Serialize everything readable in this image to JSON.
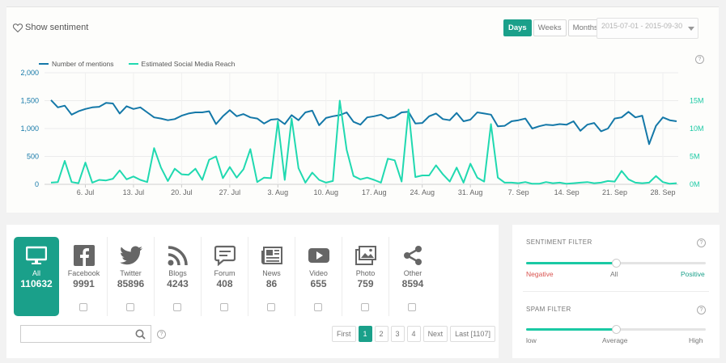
{
  "header": {
    "show_sentiment": "Show sentiment",
    "granularity": [
      "Days",
      "Weeks",
      "Months"
    ],
    "active_granularity": "Days",
    "date_range": "2015-07-01 - 2015-09-30",
    "help": "?"
  },
  "chart_data": {
    "type": "line",
    "title": "",
    "x_start": "2015-07-01",
    "x_end": "2015-09-30",
    "x_tick_labels": [
      "6. Jul",
      "13. Jul",
      "20. Jul",
      "27. Jul",
      "3. Aug",
      "10. Aug",
      "17. Aug",
      "24. Aug",
      "31. Aug",
      "7. Sep",
      "14. Sep",
      "21. Sep",
      "28. Sep"
    ],
    "y_left": {
      "label": "Number of mentions",
      "ticks": [
        "0",
        "500",
        "1,000",
        "1,500",
        "2,000"
      ],
      "range": [
        0,
        2000
      ]
    },
    "y_right": {
      "label": "Estimated Social Media Reach",
      "ticks": [
        "0M",
        "5M",
        "10M",
        "15M"
      ],
      "range": [
        0,
        20
      ]
    },
    "series": [
      {
        "name": "Number of mentions",
        "axis": "left",
        "color": "#1478a8",
        "values": [
          1510,
          1380,
          1410,
          1250,
          1310,
          1350,
          1380,
          1390,
          1460,
          1450,
          1270,
          1400,
          1350,
          1380,
          1290,
          1200,
          1180,
          1150,
          1170,
          1230,
          1270,
          1290,
          1290,
          1310,
          1080,
          1220,
          1330,
          1220,
          1260,
          1200,
          1180,
          1090,
          1160,
          1170,
          1080,
          1240,
          1150,
          1290,
          1320,
          1060,
          1190,
          1220,
          1240,
          1290,
          1120,
          1070,
          1200,
          1220,
          1250,
          1180,
          1210,
          1290,
          1300,
          1090,
          1100,
          1220,
          1270,
          1170,
          1150,
          1280,
          1130,
          1160,
          1290,
          1270,
          1250,
          1040,
          1050,
          1130,
          1150,
          1180,
          1000,
          1040,
          1070,
          1060,
          1080,
          1070,
          1130,
          960,
          1070,
          1100,
          950,
          1000,
          1180,
          1200,
          1300,
          1200,
          1230,
          720,
          1050,
          1200,
          1150,
          1130
        ]
      },
      {
        "name": "Estimated Social Media Reach",
        "axis": "right",
        "color": "#20d9b0",
        "values": [
          0.3,
          0.4,
          4.2,
          0.4,
          0.2,
          3.9,
          0.3,
          0.8,
          0.7,
          1.0,
          2.5,
          0.9,
          1.4,
          0.8,
          0.4,
          6.5,
          3.0,
          0.6,
          2.8,
          1.8,
          1.7,
          2.8,
          0.8,
          4.4,
          5.0,
          1.1,
          3.1,
          1.2,
          2.7,
          6.3,
          0.4,
          1.2,
          1.1,
          11.3,
          0.8,
          11.8,
          2.9,
          0.3,
          2.1,
          0.8,
          0.3,
          0.6,
          15.0,
          6.2,
          1.5,
          0.9,
          1.2,
          0.8,
          0.3,
          4.6,
          4.3,
          0.5,
          13.4,
          1.3,
          1.6,
          1.6,
          3.4,
          1.8,
          0.5,
          3.0,
          0.3,
          3.7,
          1.2,
          0.5,
          10.8,
          1.2,
          0.3,
          0.3,
          0.2,
          0.4,
          0.1,
          0.1,
          0.4,
          0.2,
          0.3,
          0.1,
          0.2,
          0.3,
          0.4,
          0.2,
          0.3,
          0.6,
          0.5,
          2.4,
          0.9,
          0.3,
          0.2,
          0.3,
          1.5,
          0.4,
          0.1,
          0.2
        ]
      }
    ]
  },
  "channels": [
    {
      "key": "all",
      "label": "All",
      "count": "110632",
      "icon": "monitor-icon",
      "active": true
    },
    {
      "key": "facebook",
      "label": "Facebook",
      "count": "9991",
      "icon": "facebook-icon"
    },
    {
      "key": "twitter",
      "label": "Twitter",
      "count": "85896",
      "icon": "twitter-icon"
    },
    {
      "key": "blogs",
      "label": "Blogs",
      "count": "4243",
      "icon": "rss-icon"
    },
    {
      "key": "forum",
      "label": "Forum",
      "count": "408",
      "icon": "chat-bubble-icon"
    },
    {
      "key": "news",
      "label": "News",
      "count": "86",
      "icon": "newspaper-icon"
    },
    {
      "key": "video",
      "label": "Video",
      "count": "655",
      "icon": "play-icon"
    },
    {
      "key": "photo",
      "label": "Photo",
      "count": "759",
      "icon": "photo-icon"
    },
    {
      "key": "other",
      "label": "Other",
      "count": "8594",
      "icon": "share-icon"
    }
  ],
  "search": {
    "placeholder": "",
    "help": "?"
  },
  "pagination": {
    "first": "First",
    "pages": [
      "1",
      "2",
      "3",
      "4"
    ],
    "current": "1",
    "next": "Next",
    "last": "Last [1107]"
  },
  "filters": {
    "sentiment": {
      "title": "SENTIMENT FILTER",
      "left": "Negative",
      "mid": "All",
      "right": "Positive",
      "value": 0.5,
      "help": "?"
    },
    "spam": {
      "title": "SPAM FILTER",
      "left": "low",
      "mid": "Average",
      "right": "High",
      "value": 0.5,
      "help": "?"
    }
  },
  "colors": {
    "accent": "#1aa08a",
    "mentions": "#1478a8",
    "reach": "#20d9b0",
    "negative": "#d9534f",
    "positive": "#1aa08a"
  }
}
